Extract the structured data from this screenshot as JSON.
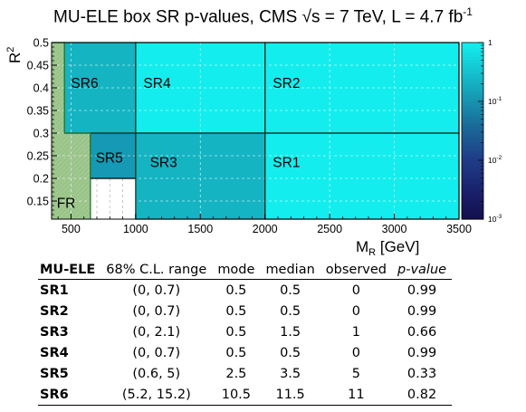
{
  "chart_data": [
    {
      "type": "heatmap",
      "title": "MU-ELE box SR p-values, CMS",
      "title_energy": "= 7 TeV, L = 4.7 fb",
      "title_sup": "-1",
      "xlabel_main": "M",
      "xlabel_sub": "R",
      "xlabel_unit": " [GeV]",
      "ylabel_main": "R",
      "ylabel_sup": "2",
      "xlim": [
        350,
        3500
      ],
      "ylim": [
        0.11,
        0.5
      ],
      "xticks": [
        500,
        1000,
        1500,
        2000,
        2500,
        3000,
        3500
      ],
      "yticks": [
        0.15,
        0.2,
        0.25,
        0.3,
        0.35,
        0.4,
        0.45,
        0.5
      ],
      "zscale": "log",
      "zlim": [
        0.001,
        1
      ],
      "zticks": [
        "1",
        "10",
        "10",
        "10"
      ],
      "zticks_sup": [
        "",
        "-1",
        "-2",
        "-3"
      ],
      "regions": [
        {
          "label": "SR6",
          "x": [
            450,
            1000
          ],
          "y": [
            0.3,
            0.5
          ],
          "p": 0.82
        },
        {
          "label": "SR4",
          "x": [
            1000,
            2000
          ],
          "y": [
            0.3,
            0.5
          ],
          "p": 0.99
        },
        {
          "label": "SR2",
          "x": [
            2000,
            3500
          ],
          "y": [
            0.3,
            0.5
          ],
          "p": 0.99
        },
        {
          "label": "SR5",
          "x": [
            650,
            1000
          ],
          "y": [
            0.2,
            0.3
          ],
          "p": 0.33
        },
        {
          "label": "SR3",
          "x": [
            1000,
            2000
          ],
          "y": [
            0.11,
            0.3
          ],
          "p": 0.66
        },
        {
          "label": "SR1",
          "x": [
            2000,
            3500
          ],
          "y": [
            0.11,
            0.3
          ],
          "p": 0.99
        },
        {
          "label": "FR",
          "x": [
            350,
            650
          ],
          "y": [
            0.11,
            0.3
          ],
          "p": null
        }
      ],
      "colors": {
        "high": "#13eded",
        "mid": "#14b4c2",
        "sr5": "#1599b4",
        "fr": "#9fc88f",
        "line": "#0a4a22"
      }
    },
    {
      "type": "table",
      "columns": [
        "MU-ELE",
        "68% C.L. range",
        "mode",
        "median",
        "observed",
        "p-value"
      ],
      "rows": [
        [
          "SR1",
          "(0, 0.7)",
          "0.5",
          "0.5",
          "0",
          "0.99"
        ],
        [
          "SR2",
          "(0, 0.7)",
          "0.5",
          "0.5",
          "0",
          "0.99"
        ],
        [
          "SR3",
          "(0, 2.1)",
          "0.5",
          "1.5",
          "1",
          "0.66"
        ],
        [
          "SR4",
          "(0, 0.7)",
          "0.5",
          "0.5",
          "0",
          "0.99"
        ],
        [
          "SR5",
          "(0.6, 5)",
          "2.5",
          "3.5",
          "5",
          "0.33"
        ],
        [
          "SR6",
          "(5.2, 15.2)",
          "10.5",
          "11.5",
          "11",
          "0.82"
        ]
      ]
    }
  ]
}
